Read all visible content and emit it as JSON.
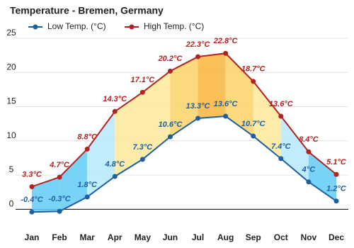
{
  "chart_data": {
    "type": "line",
    "title": "Temperature - Bremen, Germany",
    "categories": [
      "Jan",
      "Feb",
      "Mar",
      "Apr",
      "May",
      "Jun",
      "Jul",
      "Aug",
      "Sep",
      "Oct",
      "Nov",
      "Dec"
    ],
    "series": [
      {
        "name": "Low Temp. (°C)",
        "color": "#1f5f9e",
        "values": [
          -0.4,
          -0.3,
          1.8,
          4.8,
          7.3,
          10.6,
          13.3,
          13.6,
          10.7,
          7.4,
          4,
          1.2
        ],
        "value_labels": [
          "-0.4°C",
          "-0.3°C",
          "1.8°C",
          "4.8°C",
          "7.3°C",
          "10.6°C",
          "13.3°C",
          "13.6°C",
          "10.7°C",
          "7.4°C",
          "4°C",
          "1.2°C"
        ]
      },
      {
        "name": "High Temp. (°C)",
        "color": "#b22222",
        "values": [
          3.3,
          4.7,
          8.8,
          14.3,
          17.1,
          20.2,
          22.3,
          22.8,
          18.7,
          13.6,
          8.4,
          5.1
        ],
        "value_labels": [
          "3.3°C",
          "4.7°C",
          "8.8°C",
          "14.3°C",
          "17.1°C",
          "20.2°C",
          "22.3°C",
          "22.8°C",
          "18.7°C",
          "13.6°C",
          "8.4°C",
          "5.1°C"
        ]
      }
    ],
    "ylim": [
      -1,
      25
    ],
    "yticks": [
      0,
      5,
      10,
      15,
      20,
      25
    ],
    "grid": true
  }
}
